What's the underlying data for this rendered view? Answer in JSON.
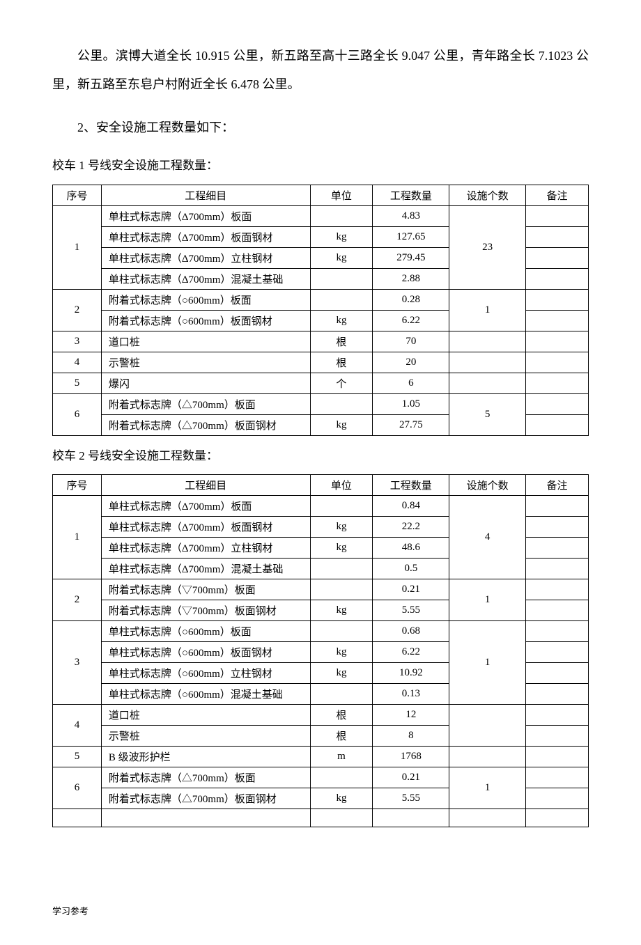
{
  "intro": {
    "p1": "公里。滨博大道全长 10.915 公里，新五路至高十三路全长 9.047 公里，青年路全长 7.1023 公里，新五路至东皂户村附近全长 6.478 公里。",
    "p2": "2、安全设施工程数量如下："
  },
  "table1": {
    "caption": "校车 1 号线安全设施工程数量：",
    "headers": {
      "seq": "序号",
      "item": "工程细目",
      "unit": "单位",
      "qty": "工程数量",
      "count": "设施个数",
      "remark": "备注"
    },
    "rows": [
      {
        "seq": "1",
        "seqRowspan": 4,
        "item": "单柱式标志牌（Δ700mm）板面",
        "unit": "",
        "qty": "4.83",
        "count": "23",
        "countRowspan": 4
      },
      {
        "item": "单柱式标志牌（Δ700mm）板面钢材",
        "unit": "kg",
        "qty": "127.65"
      },
      {
        "item": "单柱式标志牌（Δ700mm）立柱钢材",
        "unit": "kg",
        "qty": "279.45"
      },
      {
        "item": "单柱式标志牌（Δ700mm）混凝土基础",
        "unit": "",
        "qty": "2.88"
      },
      {
        "seq": "2",
        "seqRowspan": 2,
        "item": "附着式标志牌（○600mm）板面",
        "unit": "",
        "qty": "0.28",
        "count": "1",
        "countRowspan": 2
      },
      {
        "item": "附着式标志牌（○600mm）板面钢材",
        "unit": "kg",
        "qty": "6.22"
      },
      {
        "seq": "3",
        "seqRowspan": 1,
        "item": "道口桩",
        "unit": "根",
        "qty": "70",
        "count": "",
        "countRowspan": 1
      },
      {
        "seq": "4",
        "seqRowspan": 1,
        "item": "示警桩",
        "unit": "根",
        "qty": "20",
        "count": "",
        "countRowspan": 1
      },
      {
        "seq": "5",
        "seqRowspan": 1,
        "item": "爆闪",
        "unit": "个",
        "qty": "6",
        "count": "",
        "countRowspan": 1
      },
      {
        "seq": "6",
        "seqRowspan": 2,
        "item": "附着式标志牌（△700mm）板面",
        "unit": "",
        "qty": "1.05",
        "count": "5",
        "countRowspan": 2
      },
      {
        "item": "附着式标志牌（△700mm）板面钢材",
        "unit": "kg",
        "qty": "27.75"
      }
    ]
  },
  "table2": {
    "caption": "校车 2 号线安全设施工程数量：",
    "headers": {
      "seq": "序号",
      "item": "工程细目",
      "unit": "单位",
      "qty": "工程数量",
      "count": "设施个数",
      "remark": "备注"
    },
    "rows": [
      {
        "seq": "1",
        "seqRowspan": 4,
        "item": "单柱式标志牌（Δ700mm）板面",
        "unit": "",
        "qty": "0.84",
        "count": "4",
        "countRowspan": 4
      },
      {
        "item": "单柱式标志牌（Δ700mm）板面钢材",
        "unit": "kg",
        "qty": "22.2"
      },
      {
        "item": "单柱式标志牌（Δ700mm）立柱钢材",
        "unit": "kg",
        "qty": "48.6"
      },
      {
        "item": "单柱式标志牌（Δ700mm）混凝土基础",
        "unit": "",
        "qty": "0.5"
      },
      {
        "seq": "2",
        "seqRowspan": 2,
        "item": "附着式标志牌（▽700mm）板面",
        "unit": "",
        "qty": "0.21",
        "count": "1",
        "countRowspan": 2
      },
      {
        "item": "附着式标志牌（▽700mm）板面钢材",
        "unit": "kg",
        "qty": "5.55"
      },
      {
        "seq": "3",
        "seqRowspan": 4,
        "item": "单柱式标志牌（○600mm）板面",
        "unit": "",
        "qty": "0.68",
        "count": "1",
        "countRowspan": 4
      },
      {
        "item": "单柱式标志牌（○600mm）板面钢材",
        "unit": "kg",
        "qty": "6.22"
      },
      {
        "item": "单柱式标志牌（○600mm）立柱钢材",
        "unit": "kg",
        "qty": "10.92"
      },
      {
        "item": "单柱式标志牌（○600mm）混凝土基础",
        "unit": "",
        "qty": "0.13"
      },
      {
        "seq": "4",
        "seqRowspan": 2,
        "item": "道口桩",
        "unit": "根",
        "qty": "12",
        "count": "",
        "countRowspan": 2
      },
      {
        "item": "示警桩",
        "unit": "根",
        "qty": "8"
      },
      {
        "seq": "5",
        "seqRowspan": 1,
        "item": "B 级波形护栏",
        "unit": "m",
        "qty": "1768",
        "count": "",
        "countRowspan": 1
      },
      {
        "seq": "6",
        "seqRowspan": 2,
        "item": "附着式标志牌（△700mm）板面",
        "unit": "",
        "qty": "0.21",
        "count": "1",
        "countRowspan": 2
      },
      {
        "item": "附着式标志牌（△700mm）板面钢材",
        "unit": "kg",
        "qty": "5.55"
      },
      {
        "seq": "",
        "seqRowspan": 1,
        "item": "",
        "unit": "",
        "qty": "",
        "count": "",
        "countRowspan": 1
      }
    ]
  },
  "footer": "学习参考"
}
